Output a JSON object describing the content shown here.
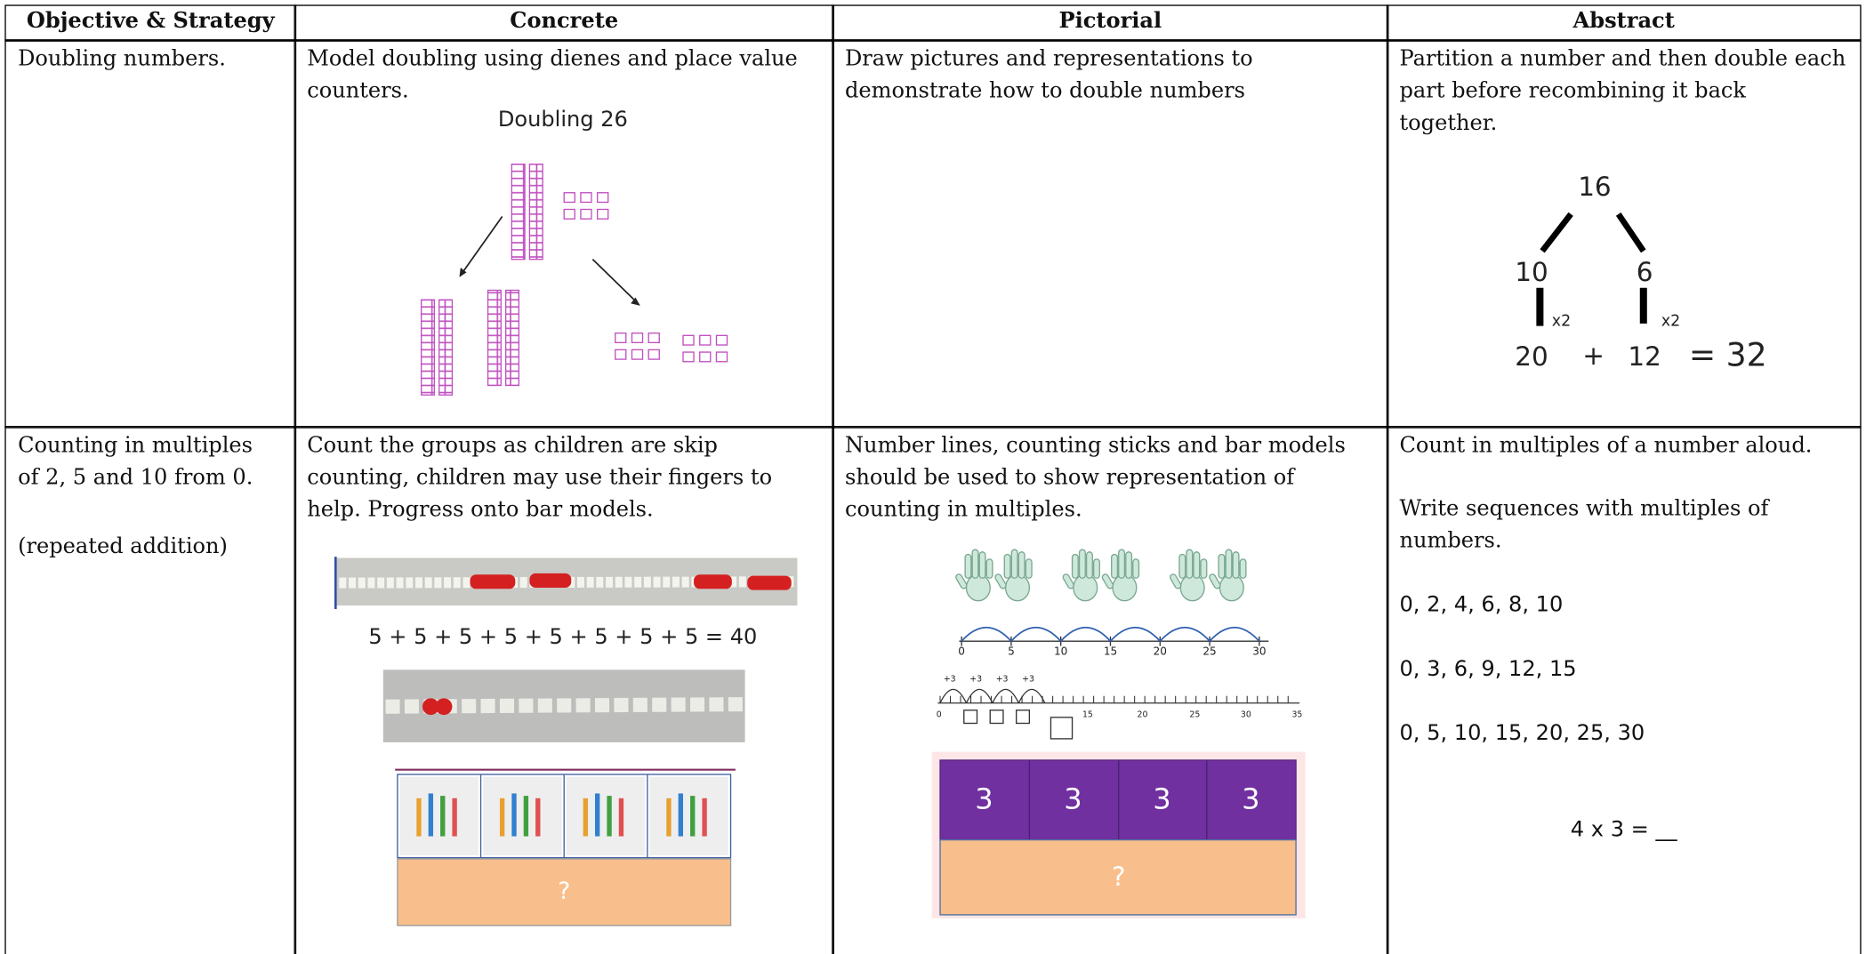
{
  "header": [
    "Objective & Strategy",
    "Concrete",
    "Pictorial",
    "Abstract"
  ],
  "rows": [
    {
      "objective": [
        "Doubling numbers."
      ],
      "concrete": {
        "text": "Model doubling using dienes and place value counters.",
        "caption": "Doubling 26"
      },
      "pictorial": {
        "text": "Draw pictures and representations to demonstrate how to double numbers"
      },
      "abstract": {
        "text": "Partition a number and then double each part before recombining it back together.",
        "tree": {
          "whole": "16",
          "parts": [
            "10",
            "6"
          ],
          "operations": [
            "x2",
            "x2"
          ],
          "results": [
            "20",
            "12"
          ],
          "plus": "+",
          "total": "= 32"
        }
      }
    },
    {
      "objective": [
        "Counting in multiples of 2, 5 and 10 from 0.",
        "(repeated addition)"
      ],
      "concrete": {
        "text": "Count the groups as children are skip counting, children may use their fingers to help. Progress onto bar models.",
        "equation": "5 + 5 + 5 + 5 + 5 + 5 + 5 + 5 = 40",
        "bar_total": "?"
      },
      "pictorial": {
        "text": "Number lines, counting sticks and bar models should be used to show representation of counting in multiples.",
        "number_line_1": [
          "0",
          "5",
          "10",
          "15",
          "20",
          "25",
          "30"
        ],
        "jumps": [
          "+3",
          "+3",
          "+3",
          "+3"
        ],
        "number_line_2": [
          "0",
          "15",
          "20",
          "25",
          "30",
          "35"
        ],
        "bar_parts": [
          "3",
          "3",
          "3",
          "3"
        ],
        "bar_total": "?"
      },
      "abstract": {
        "lines": [
          "Count in multiples of a number aloud.",
          "Write sequences with multiples of numbers."
        ],
        "sequences": [
          "0, 2, 4, 6, 8, 10",
          "0, 3, 6, 9, 12, 15",
          "0, 5, 10, 15, 20, 25, 30"
        ],
        "question": "4 x 3 = __"
      }
    }
  ]
}
